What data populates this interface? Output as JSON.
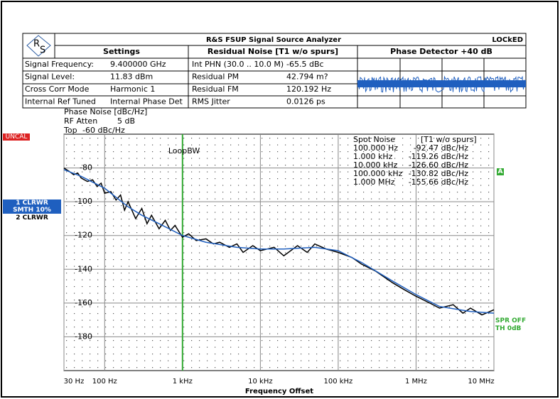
{
  "header": {
    "logo": [
      "R",
      "S"
    ],
    "title": "R&S FSUP Signal Source Analyzer",
    "status": "LOCkED",
    "settings_header": "Settings",
    "noise_header": "Residual Noise [T1 w/o spurs]",
    "detector_header": "Phase Detector +40 dB"
  },
  "table": {
    "rows": [
      [
        "Signal Frequency:",
        "9.400000 GHz",
        "Int PHN (30.0  .. 10.0 M)",
        "-65.5 dBc"
      ],
      [
        "Signal Level:",
        "11.83 dBm",
        "Residual PM",
        "42.794 m?"
      ],
      [
        "Cross Corr Mode",
        "Harmonic 1",
        "Residual FM",
        "120.192 Hz"
      ],
      [
        "Internal Ref Tuned",
        "Internal Phase Det",
        "RMS Jitter",
        "0.0126 ps"
      ]
    ]
  },
  "chart_data": {
    "type": "line",
    "info": [
      "Phase Noise [dBc/Hz]",
      "RF Atten",
      "5 dB",
      "Top",
      "-60 dBc/Hz"
    ],
    "xlabel": "Frequency Offset",
    "uncal": "UNCAL",
    "marker": "A",
    "spr": "SPR OFF",
    "th": "TH 0dB",
    "loop_bw": {
      "label": "LoopBW",
      "x": 1000
    },
    "log_x": true,
    "grid": true,
    "xlim": [
      30,
      10000000
    ],
    "xticks": [
      {
        "value": 30,
        "label": "30 Hz"
      },
      {
        "value": 100,
        "label": "100 Hz"
      },
      {
        "value": 1000,
        "label": "1 kHz"
      },
      {
        "value": 10000,
        "label": "10 kHz"
      },
      {
        "value": 100000,
        "label": "100 kHz"
      },
      {
        "value": 1000000,
        "label": "1 MHz"
      },
      {
        "value": 10000000,
        "label": "10 MHz"
      }
    ],
    "ylim": [
      -200,
      -60
    ],
    "yticks": [
      -80,
      -100,
      -120,
      -140,
      -160,
      -180
    ],
    "spot_noise": {
      "header": [
        "Spot Noise",
        "[T1 w/o spurs]"
      ],
      "rows": [
        [
          "100.000 Hz",
          "-92.47 dBc/Hz"
        ],
        [
          "1.000 kHz",
          "-119.26 dBc/Hz"
        ],
        [
          "10.000 kHz",
          "-126.60 dBc/Hz"
        ],
        [
          "100.000 kHz",
          "-130.82 dBc/Hz"
        ],
        [
          "1.000 MHz",
          "-155.66 dBc/Hz"
        ]
      ]
    },
    "series": [
      {
        "name": "2 CLRWR",
        "color": "#000000",
        "x": [
          30,
          35,
          40,
          45,
          50,
          60,
          70,
          80,
          90,
          100,
          120,
          140,
          160,
          180,
          200,
          250,
          300,
          350,
          400,
          500,
          600,
          700,
          800,
          1000,
          1200,
          1500,
          2000,
          2500,
          3000,
          4000,
          5000,
          6000,
          8000,
          10000,
          15000,
          20000,
          30000,
          40000,
          50000,
          70000,
          100000,
          150000,
          200000,
          300000,
          500000,
          700000,
          1000000,
          1500000,
          2000000,
          3000000,
          4000000,
          5000000,
          7000000,
          10000000
        ],
        "values": [
          -80,
          -82,
          -84,
          -83,
          -86,
          -88,
          -87,
          -91,
          -89,
          -95,
          -94,
          -99,
          -96,
          -105,
          -100,
          -110,
          -104,
          -113,
          -108,
          -116,
          -111,
          -117,
          -114,
          -121,
          -119,
          -123,
          -122,
          -125,
          -124,
          -127,
          -125,
          -130,
          -126,
          -129,
          -127,
          -132,
          -126,
          -130,
          -125,
          -128,
          -130,
          -133,
          -137,
          -141,
          -148,
          -152,
          -156,
          -160,
          -163,
          -161,
          -166,
          -163,
          -167,
          -164
        ]
      },
      {
        "name": "1 CLRWR\nSMTH 10%",
        "color": "#1f5fbf",
        "x": [
          30,
          50,
          100,
          200,
          300,
          500,
          1000,
          2000,
          5000,
          10000,
          20000,
          50000,
          100000,
          200000,
          500000,
          1000000,
          2000000,
          5000000,
          10000000
        ],
        "values": [
          -81,
          -85,
          -92,
          -103,
          -108,
          -113,
          -120,
          -124,
          -127,
          -128,
          -128,
          -127,
          -129,
          -136,
          -147,
          -155,
          -162,
          -165,
          -166
        ]
      }
    ]
  }
}
